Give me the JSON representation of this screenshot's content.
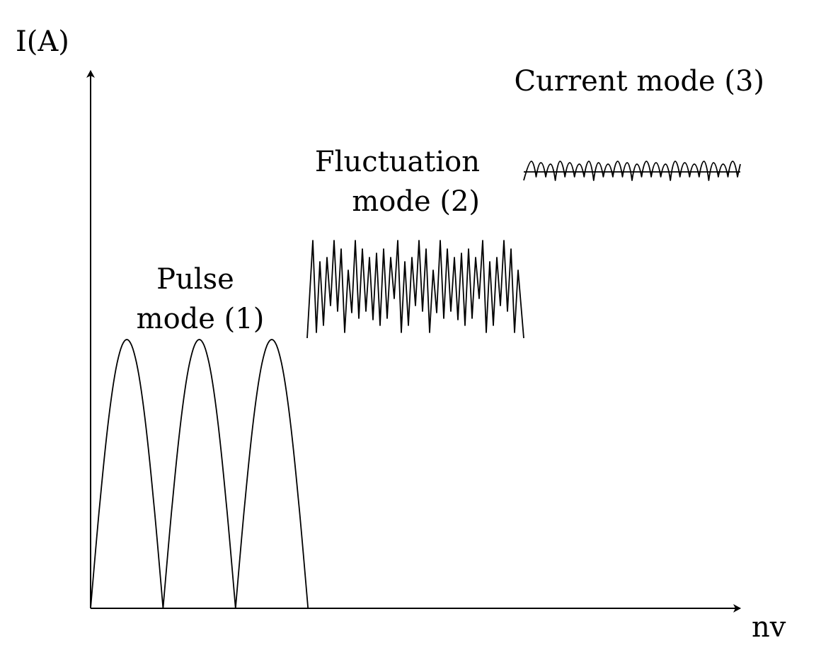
{
  "axes": {
    "y_label": "I(A)",
    "x_label": "nv"
  },
  "modes": {
    "pulse": {
      "line1": "Pulse",
      "line2": "mode (1)"
    },
    "fluctuation": {
      "line1": "Fluctuation",
      "line2": "mode (2)"
    },
    "current": {
      "line1": "Current mode (3)"
    }
  },
  "colors": {
    "ink": "#000000",
    "background": "#ffffff"
  }
}
